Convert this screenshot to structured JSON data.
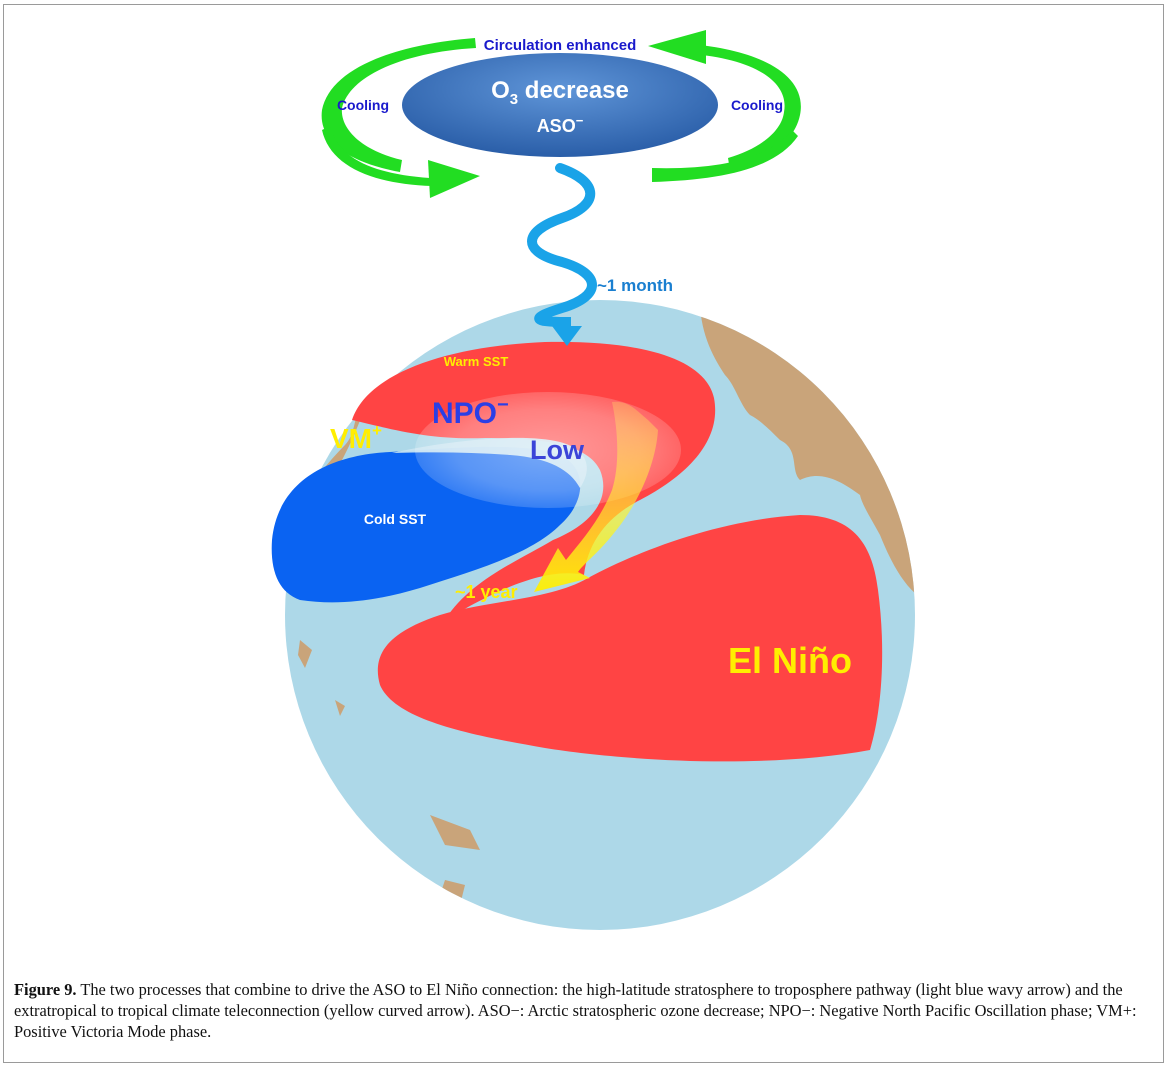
{
  "diagram": {
    "circulation_label": "Circulation enhanced",
    "cooling_left": "Cooling",
    "cooling_right": "Cooling",
    "ozone_main": "O",
    "ozone_sub": "3",
    "ozone_rest": " decrease",
    "aso_label": "ASO",
    "aso_sup": "−",
    "month_label": "~1 month",
    "warm_sst": "Warm SST",
    "npo_label": "NPO",
    "npo_sup": "−",
    "low_label": "Low",
    "vm_label": "VM",
    "vm_sup": "+",
    "cold_sst": "Cold SST",
    "year_label": "~1 year",
    "elnino_label": "El Niño"
  },
  "caption": {
    "label": "Figure 9.",
    "text": " The two processes that combine to drive the ASO to El Niño connection: the high-latitude stratosphere to troposphere pathway (light blue wavy arrow) and the extratropical to tropical climate teleconnection (yellow curved arrow). ASO−: Arctic stratospheric ozone decrease; NPO−: Negative North Pacific Oscillation phase; VM+: Positive Victoria Mode phase."
  },
  "colors": {
    "ocean": "#add8e8",
    "land": "#c9a47a",
    "warm": "#ff4444",
    "cold": "#0a63f2",
    "green_arrow": "#22dd22",
    "wavy_arrow": "#1aa3e8",
    "yellow": "#ffee00",
    "ellipse_blue": "#2f6cc4",
    "text_blue": "#1a1acc"
  }
}
